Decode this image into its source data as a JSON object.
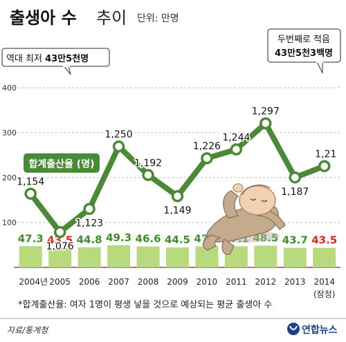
{
  "header": {
    "title_bold": "출생아 수",
    "title_light": "추이",
    "unit": "단위: 만명"
  },
  "callouts": {
    "low_prefix": "역대 최저 ",
    "low_value": "43만5천명",
    "second_low_line1": "두번째로 적음",
    "second_low_line2": "43만5천3백명"
  },
  "line_label": "합계출산율 (명)",
  "footnote": "*합계출산율: 여자 1명이 평생 낳을 것으로 예상되는 평균 출생아 수",
  "source": "자료/통계청",
  "logo_text": "연합뉴스",
  "colors": {
    "bar": "#b9d97e",
    "line": "#4a8a36",
    "label_green": "#3e8f2c",
    "label_red": "#e0251b",
    "grid": "#bdbdbd"
  },
  "chart_data": {
    "type": "bar",
    "categories": [
      "2004년",
      "2005",
      "2006",
      "2007",
      "2008",
      "2009",
      "2010",
      "2011",
      "2012",
      "2013",
      "2014"
    ],
    "category_note": "(잠정)",
    "series": [
      {
        "values": [
          47.3,
          43.5,
          44.8,
          49.3,
          46.6,
          44.5,
          47.0,
          47.1,
          48.5,
          43.7,
          43.5
        ],
        "labels": [
          "47.3",
          "43.5",
          "44.8",
          "49.3",
          "46.6",
          "44.5",
          "47.0",
          "47.1",
          "48.5",
          "43.7",
          "43.5"
        ],
        "highlight": [
          false,
          true,
          false,
          false,
          false,
          false,
          false,
          false,
          false,
          false,
          true
        ]
      },
      {
        "name": "합계출산율 (명)",
        "type": "line",
        "values": [
          1.154,
          1.076,
          1.123,
          1.25,
          1.192,
          1.149,
          1.226,
          1.244,
          1.297,
          1.187,
          1.21
        ],
        "labels": [
          "1,154",
          "1,076",
          "1,123",
          "1,250",
          "1,192",
          "1,149",
          "1,226",
          "1,244",
          "1,297",
          "1,187",
          "1,21"
        ]
      }
    ],
    "yticks": [
      100,
      200,
      300,
      400
    ],
    "ylim": [
      0,
      500
    ],
    "grid": true
  }
}
